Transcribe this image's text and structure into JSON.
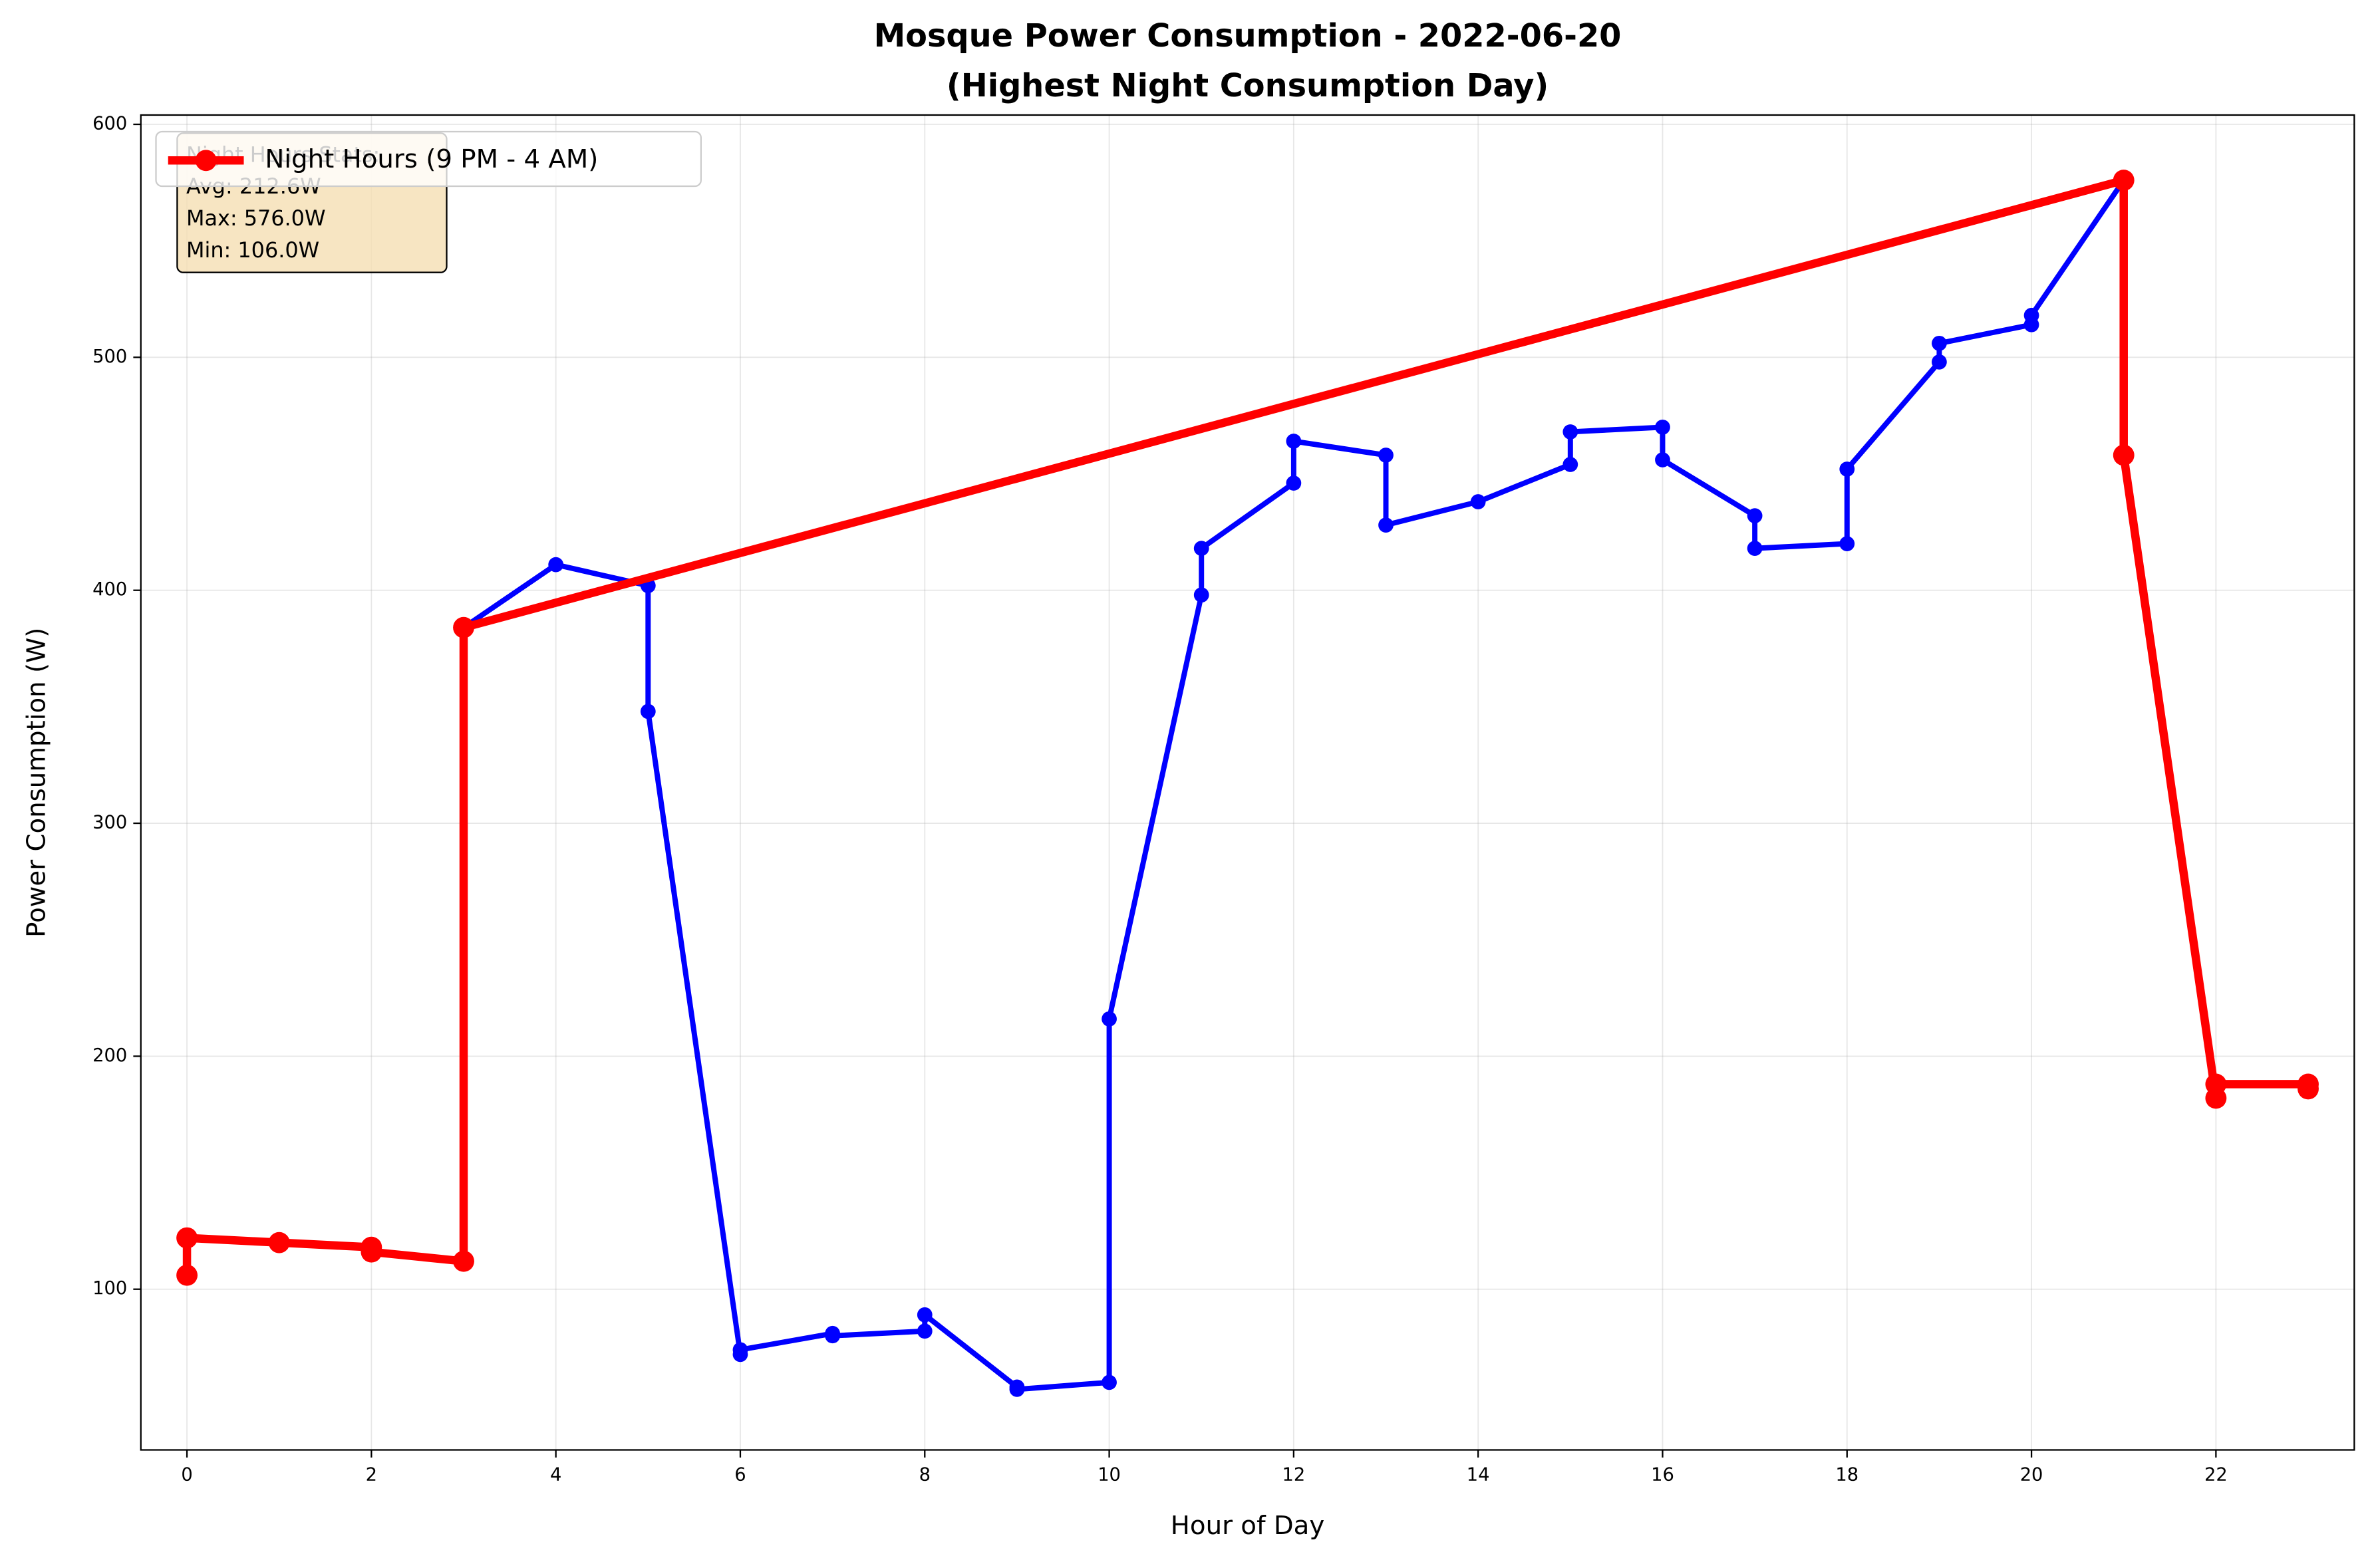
{
  "chart_data": {
    "type": "line",
    "title": [
      "Mosque Power Consumption - 2022-06-20",
      "(Highest Night Consumption Day)"
    ],
    "x_label": "Hour of Day",
    "y_label": "Power Consumption (W)",
    "xlim": [
      -0.5,
      23.5
    ],
    "ylim": [
      31,
      604
    ],
    "xticks": [
      0,
      2,
      4,
      6,
      8,
      10,
      12,
      14,
      16,
      18,
      20,
      22
    ],
    "yticks": [
      100,
      200,
      300,
      400,
      500,
      600
    ],
    "grid": true,
    "legend_position": "upper left",
    "annotation": [
      "Night Hours Stats:",
      "Avg: 212.6W",
      "Max: 576.0W",
      "Min: 106.0W"
    ],
    "series": [
      {
        "color": "#0000ff",
        "x": [
          0,
          0,
          1,
          2,
          2,
          3,
          3,
          4,
          5,
          5,
          6,
          6,
          7,
          7,
          8,
          8,
          9,
          9,
          10,
          10,
          11,
          11,
          12,
          12,
          13,
          13,
          14,
          15,
          15,
          16,
          16,
          17,
          17,
          18,
          18,
          19,
          19,
          20,
          20,
          21,
          21,
          22,
          22,
          23,
          23
        ],
        "values": [
          106,
          122,
          120,
          118,
          116,
          112,
          384,
          411,
          402,
          348,
          72,
          74,
          81,
          80,
          82,
          89,
          58,
          57,
          60,
          216,
          398,
          418,
          446,
          464,
          458,
          428,
          438,
          454,
          468,
          470,
          456,
          432,
          418,
          420,
          452,
          498,
          506,
          514,
          518,
          576,
          458,
          182,
          188,
          188,
          186
        ]
      },
      {
        "name": "Night Hours (9 PM - 4 AM)",
        "color": "#ff0000",
        "x": [
          0,
          0,
          1,
          2,
          2,
          3,
          3,
          21,
          21,
          22,
          22,
          23,
          23
        ],
        "values": [
          106,
          122,
          120,
          118,
          116,
          112,
          384,
          576,
          458,
          182,
          188,
          188,
          186
        ]
      }
    ]
  }
}
